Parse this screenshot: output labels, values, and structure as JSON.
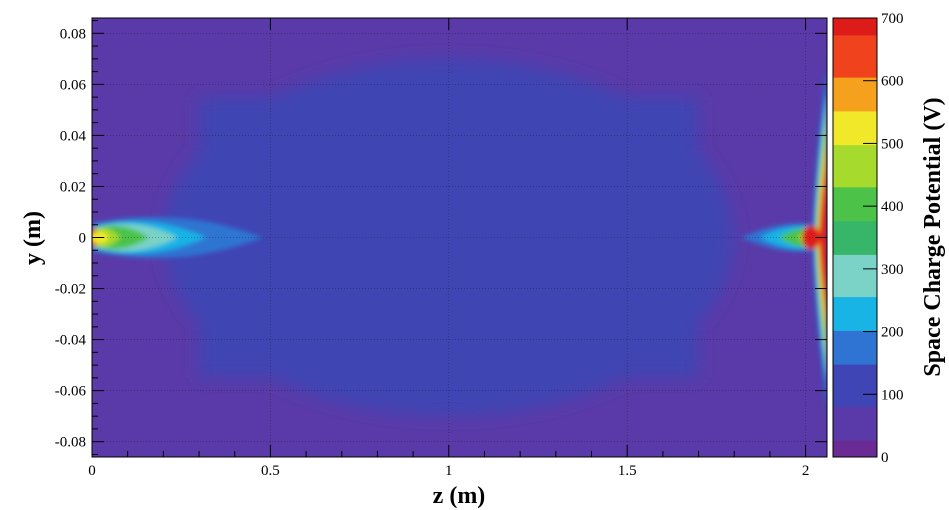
{
  "chart_data": {
    "type": "heatmap",
    "title": "",
    "xlabel": "z (m)",
    "ylabel": "y (m)",
    "colorbar_label": "Space Charge Potential (V)",
    "xlim": [
      0,
      2.06
    ],
    "ylim": [
      -0.086,
      0.086
    ],
    "clim": [
      0,
      700
    ],
    "x_ticks": [
      0,
      0.5,
      1,
      1.5,
      2
    ],
    "x_tick_labels": [
      "0",
      "0.5",
      "1",
      "1.5",
      "2"
    ],
    "y_ticks": [
      0.08,
      0.06,
      0.04,
      0.02,
      0,
      -0.02,
      -0.04,
      -0.06,
      -0.08
    ],
    "y_tick_labels": [
      "0.08",
      "0.06",
      "0.04",
      "0.02",
      "0",
      "-0.02",
      "-0.04",
      "-0.06",
      "-0.08"
    ],
    "colorbar_ticks": [
      0,
      100,
      200,
      300,
      400,
      500,
      600,
      700
    ],
    "colorbar_tick_labels": [
      "0",
      "100",
      "200",
      "300",
      "400",
      "500",
      "600",
      "700"
    ],
    "grid": true,
    "colormap": [
      "#6a2b94",
      "#5a3aa8",
      "#3f45b4",
      "#2f74d2",
      "#18b4e6",
      "#7ad3c6",
      "#37b66a",
      "#4cc248",
      "#a6da2c",
      "#f2e82a",
      "#f6a11e",
      "#f0421c",
      "#dd1c1a"
    ],
    "field_features": [
      {
        "feature": "background",
        "z_range": [
          0,
          2.06
        ],
        "y_range": [
          -0.086,
          0.086
        ],
        "value": 35
      },
      {
        "feature": "central core",
        "z_range": [
          0.2,
          1.8
        ],
        "y_range": [
          -0.07,
          0.07
        ],
        "value": 90
      },
      {
        "feature": "entrance plume",
        "z_range": [
          0,
          0.48
        ],
        "y_range": [
          -0.012,
          0.012
        ],
        "peak_value": 700,
        "edge_value": 150
      },
      {
        "feature": "exit plume",
        "z_range": [
          1.82,
          2.03
        ],
        "y_range": [
          -0.005,
          0.005
        ],
        "peak_value": 700,
        "edge_value": 150
      },
      {
        "feature": "exit wall spike",
        "z_range": [
          2.02,
          2.06
        ],
        "y_range": [
          -0.075,
          0.075
        ],
        "peak_value": 700
      }
    ]
  }
}
